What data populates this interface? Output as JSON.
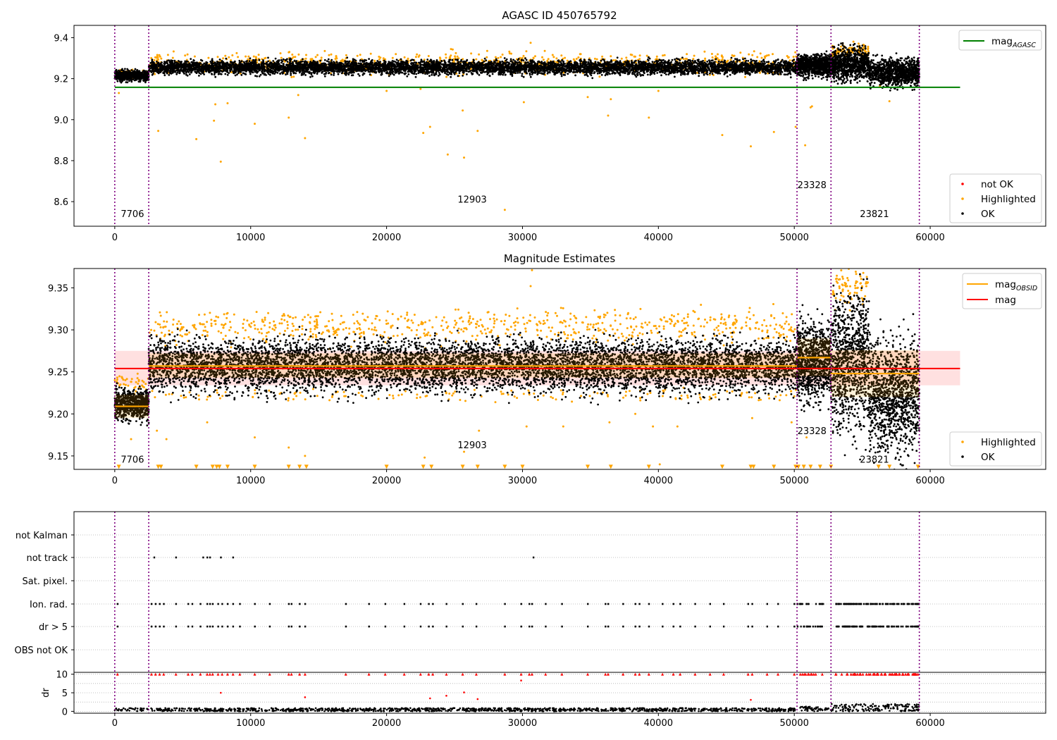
{
  "chart_data": [
    {
      "type": "scatter",
      "title": "AGASC ID 450765792",
      "xlim": [
        -3000,
        68500
      ],
      "ylim": [
        8.48,
        9.46
      ],
      "xticks": [
        0,
        10000,
        20000,
        30000,
        40000,
        50000,
        60000
      ],
      "yticks": [
        8.6,
        8.8,
        9.0,
        9.2,
        9.4
      ],
      "ytick_format": 1,
      "grid": false,
      "legend_upper": {
        "position": "upper-right",
        "entries": [
          {
            "label": "mag",
            "sub": "AGASC",
            "color": "#008000",
            "kind": "line"
          }
        ]
      },
      "legend_lower": {
        "position": "lower-right",
        "entries": [
          {
            "label": "not OK",
            "color": "#ff0000",
            "kind": "dot"
          },
          {
            "label": "Highlighted",
            "color": "#ffa500",
            "kind": "dot"
          },
          {
            "label": "OK",
            "color": "#000000",
            "kind": "dot"
          }
        ]
      },
      "hlines": [
        {
          "name": "mag_AGASC",
          "y": 9.158,
          "x0": 0,
          "x1": 62200,
          "color": "#008000"
        }
      ],
      "segment_boundaries": [
        0,
        2500,
        50200,
        52700,
        59200
      ],
      "obsid_labels": [
        {
          "text": "7706",
          "x": 1300,
          "y": 8.525
        },
        {
          "text": "12903",
          "x": 26300,
          "y": 8.595
        },
        {
          "text": "23328",
          "x": 51300,
          "y": 8.665
        },
        {
          "text": "23821",
          "x": 55900,
          "y": 8.525
        }
      ],
      "ok_bands": [
        {
          "x0": 0,
          "x1": 2500,
          "lo": 9.19,
          "hi": 9.24,
          "n": 700
        },
        {
          "x0": 2500,
          "x1": 50200,
          "lo": 9.22,
          "hi": 9.29,
          "n": 6500
        },
        {
          "x0": 50200,
          "x1": 52700,
          "lo": 9.21,
          "hi": 9.32,
          "n": 900
        },
        {
          "x0": 52700,
          "x1": 55500,
          "lo": 9.19,
          "hi": 9.35,
          "n": 900
        },
        {
          "x0": 55500,
          "x1": 59200,
          "lo": 9.16,
          "hi": 9.3,
          "n": 1000
        }
      ],
      "highlight_bands": [
        {
          "x0": 0,
          "x1": 2500,
          "lo": 9.2,
          "hi": 9.25,
          "n": 60
        },
        {
          "x0": 2500,
          "x1": 50200,
          "lo": 9.22,
          "hi": 9.33,
          "n": 900
        },
        {
          "x0": 52700,
          "x1": 55500,
          "lo": 9.3,
          "hi": 9.37,
          "n": 120
        }
      ],
      "highlighted_outliers": [
        [
          300,
          9.13
        ],
        [
          3200,
          8.945
        ],
        [
          6000,
          8.905
        ],
        [
          7300,
          8.995
        ],
        [
          7400,
          9.075
        ],
        [
          7800,
          8.795
        ],
        [
          8300,
          9.08
        ],
        [
          10300,
          8.98
        ],
        [
          12800,
          9.01
        ],
        [
          13500,
          9.12
        ],
        [
          14000,
          8.91
        ],
        [
          20000,
          9.14
        ],
        [
          22500,
          9.15
        ],
        [
          22700,
          8.935
        ],
        [
          23200,
          8.965
        ],
        [
          24500,
          8.83
        ],
        [
          25600,
          9.045
        ],
        [
          25700,
          8.815
        ],
        [
          26700,
          8.945
        ],
        [
          28700,
          8.56
        ],
        [
          30100,
          9.085
        ],
        [
          30600,
          9.375
        ],
        [
          34800,
          9.11
        ],
        [
          36300,
          9.02
        ],
        [
          36500,
          9.1
        ],
        [
          39300,
          9.01
        ],
        [
          40000,
          9.14
        ],
        [
          44700,
          8.925
        ],
        [
          46800,
          8.87
        ],
        [
          48500,
          8.94
        ],
        [
          50100,
          8.965
        ],
        [
          50800,
          8.875
        ],
        [
          51200,
          9.06
        ],
        [
          51300,
          9.065
        ],
        [
          56300,
          9.165
        ],
        [
          57000,
          9.09
        ]
      ]
    },
    {
      "type": "scatter",
      "title": "Magnitude Estimates",
      "xlim": [
        -3000,
        68500
      ],
      "ylim": [
        9.134,
        9.373
      ],
      "xticks": [
        0,
        10000,
        20000,
        30000,
        40000,
        50000,
        60000
      ],
      "yticks": [
        9.15,
        9.2,
        9.25,
        9.3,
        9.35
      ],
      "ytick_format": 2,
      "grid": false,
      "legend_upper": {
        "position": "upper-right",
        "entries": [
          {
            "label": "mag",
            "sub": "OBSID",
            "color": "#ffa500",
            "kind": "line"
          },
          {
            "label": "mag",
            "sub": "",
            "color": "#ff0000",
            "kind": "line"
          }
        ]
      },
      "legend_lower": {
        "position": "lower-right",
        "entries": [
          {
            "label": "Highlighted",
            "color": "#ffa500",
            "kind": "dot"
          },
          {
            "label": "OK",
            "color": "#000000",
            "kind": "dot"
          }
        ]
      },
      "mag_line": {
        "y": 9.254,
        "band": [
          9.234,
          9.275
        ],
        "x0": 0,
        "x1": 62200,
        "color": "#ff0000"
      },
      "obsid_mags": [
        {
          "x0": 0,
          "x1": 2500,
          "y": 9.209,
          "lo": 9.195,
          "hi": 9.223
        },
        {
          "x0": 2500,
          "x1": 50200,
          "y": 9.257,
          "lo": 9.243,
          "hi": 9.272
        },
        {
          "x0": 50200,
          "x1": 52700,
          "y": 9.267,
          "lo": 9.245,
          "hi": 9.29
        },
        {
          "x0": 52700,
          "x1": 59200,
          "y": 9.248,
          "lo": 9.22,
          "hi": 9.276
        }
      ],
      "segment_boundaries": [
        0,
        2500,
        50200,
        52700,
        59200
      ],
      "obsid_labels": [
        {
          "text": "7706",
          "x": 1300,
          "y": 9.142
        },
        {
          "text": "12903",
          "x": 26300,
          "y": 9.159
        },
        {
          "text": "23328",
          "x": 51300,
          "y": 9.176
        },
        {
          "text": "23821",
          "x": 55900,
          "y": 9.142
        }
      ],
      "ok_bands": [
        {
          "x0": 0,
          "x1": 2500,
          "lo": 9.193,
          "hi": 9.23,
          "n": 700
        },
        {
          "x0": 2500,
          "x1": 50200,
          "lo": 9.225,
          "hi": 9.29,
          "n": 7000
        },
        {
          "x0": 50200,
          "x1": 52700,
          "lo": 9.215,
          "hi": 9.31,
          "n": 900
        },
        {
          "x0": 52700,
          "x1": 55500,
          "lo": 9.18,
          "hi": 9.345,
          "n": 900
        },
        {
          "x0": 55500,
          "x1": 59200,
          "lo": 9.15,
          "hi": 9.29,
          "n": 1100
        }
      ],
      "highlight_bands": [
        {
          "x0": 0,
          "x1": 2500,
          "lo": 9.225,
          "hi": 9.25,
          "n": 40
        },
        {
          "x0": 2500,
          "x1": 50200,
          "lo": 9.285,
          "hi": 9.325,
          "n": 700
        },
        {
          "x0": 2500,
          "x1": 50200,
          "lo": 9.215,
          "hi": 9.23,
          "n": 150
        },
        {
          "x0": 52700,
          "x1": 55500,
          "lo": 9.33,
          "hi": 9.37,
          "n": 80
        }
      ],
      "highlighted_outliers": [
        [
          1200,
          9.17
        ],
        [
          3100,
          9.18
        ],
        [
          3800,
          9.17
        ],
        [
          6800,
          9.19
        ],
        [
          10300,
          9.172
        ],
        [
          12800,
          9.16
        ],
        [
          14000,
          9.15
        ],
        [
          22800,
          9.148
        ],
        [
          25700,
          9.155
        ],
        [
          26800,
          9.18
        ],
        [
          30300,
          9.185
        ],
        [
          30600,
          9.352
        ],
        [
          30700,
          9.371
        ],
        [
          33000,
          9.185
        ],
        [
          36400,
          9.19
        ],
        [
          38300,
          9.2
        ],
        [
          39600,
          9.185
        ],
        [
          40100,
          9.14
        ],
        [
          41400,
          9.185
        ],
        [
          46900,
          9.195
        ],
        [
          49800,
          9.19
        ],
        [
          50900,
          9.172
        ]
      ],
      "below_markers_y": 9.137,
      "below_markers_x": [
        300,
        3200,
        3400,
        6000,
        7200,
        7500,
        7700,
        8300,
        10300,
        12800,
        13600,
        14100,
        20000,
        22700,
        23300,
        25600,
        26700,
        28700,
        30000,
        34800,
        36500,
        39300,
        44700,
        46800,
        47000,
        48500,
        50100,
        50300,
        50700,
        51200,
        51900,
        52700,
        56200,
        57000,
        59100
      ]
    },
    {
      "type": "scatter",
      "title": "",
      "xlim": [
        -3000,
        68500
      ],
      "category_labels": [
        "not Kalman",
        "not track",
        "Sat. pixel.",
        "Ion. rad.",
        "dr > 5",
        "OBS not OK"
      ],
      "segment_boundaries": [
        0,
        2500,
        50200,
        52700,
        59200
      ],
      "flag_points": {
        "not Kalman": [],
        "not track": [
          2900,
          4500,
          6500,
          6800,
          7000,
          7800,
          8700,
          30800
        ],
        "Ion. rad.": [
          200,
          2700,
          3000,
          3300,
          3600,
          4500,
          5400,
          5700,
          6300,
          6800,
          7000,
          7200,
          7600,
          7900,
          8300,
          8700,
          9200,
          10300,
          11400,
          12800,
          13000,
          13600,
          14000,
          17000,
          18700,
          19900,
          21300,
          22500,
          23100,
          23400,
          24400,
          25600,
          26600,
          28700,
          29900,
          30500,
          30700,
          31700,
          32900,
          34800,
          36100,
          36300,
          37400,
          38300,
          38600,
          39300,
          40300,
          41100,
          41600,
          42700,
          43800,
          44800,
          46600,
          46900,
          48000,
          48800,
          50000
        ],
        "dr > 5": [
          200,
          2700,
          3000,
          3300,
          3600,
          4500,
          5400,
          5700,
          6300,
          6800,
          7000,
          7200,
          7600,
          7900,
          8300,
          8700,
          9200,
          10300,
          11400,
          12800,
          13000,
          13600,
          14000,
          17000,
          18700,
          19900,
          21300,
          22500,
          23100,
          23400,
          24400,
          25600,
          26600,
          28700,
          29900,
          30500,
          30700,
          31700,
          32900,
          34800,
          36100,
          36300,
          37400,
          38300,
          38600,
          39300,
          40300,
          41100,
          41600,
          42700,
          43800,
          44800,
          46600,
          46900,
          48000,
          48800,
          50000
        ]
      },
      "dense_flag_ranges": [
        [
          50200,
          52200,
          0.6
        ],
        [
          53000,
          59200,
          1.0
        ]
      ],
      "dr_panel": {
        "ylabel": "dr",
        "ylim": [
          -0.5,
          10.5
        ],
        "yticks": [
          0,
          5,
          10
        ],
        "clip_value": 10,
        "dr_outliers": [
          [
            7800,
            5
          ],
          [
            14000,
            3.8
          ],
          [
            23200,
            3.5
          ],
          [
            24400,
            4.2
          ],
          [
            25700,
            5.1
          ],
          [
            26700,
            3.3
          ],
          [
            29900,
            8.3
          ],
          [
            46800,
            3.1
          ]
        ],
        "base_lo": 0.0,
        "base_hi": 0.9,
        "late_hi": 2.0
      }
    }
  ]
}
